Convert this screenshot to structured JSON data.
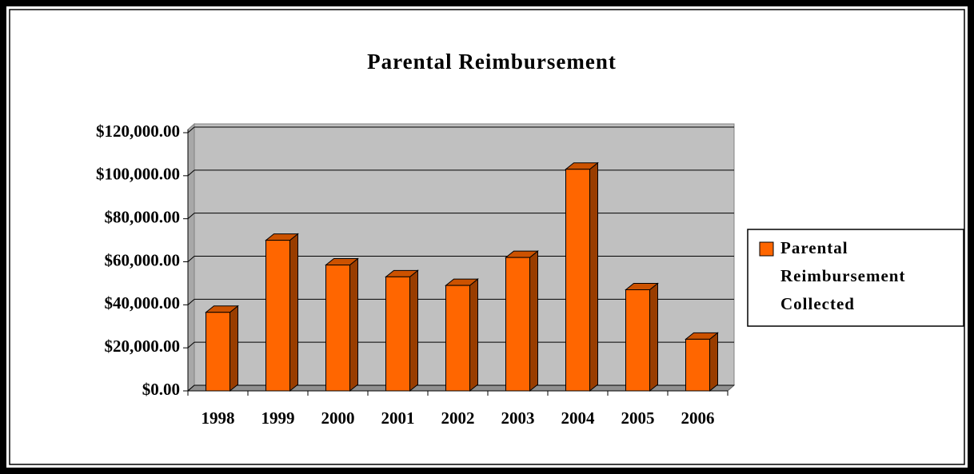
{
  "chart_data": {
    "type": "bar3d",
    "title": "Parental Reimbursement",
    "categories": [
      "1998",
      "1999",
      "2000",
      "2001",
      "2002",
      "2003",
      "2004",
      "2005",
      "2006"
    ],
    "series": [
      {
        "name": "Parental Reimbursement Collected",
        "color": "#ff6600",
        "values": [
          36500,
          70000,
          58500,
          53000,
          49000,
          62000,
          103000,
          47000,
          24000
        ]
      }
    ],
    "ylim": [
      0,
      120000
    ],
    "yticks": [
      {
        "value": 0,
        "label": "$0.00"
      },
      {
        "value": 20000,
        "label": "$20,000.00"
      },
      {
        "value": 40000,
        "label": "$40,000.00"
      },
      {
        "value": 60000,
        "label": "$60,000.00"
      },
      {
        "value": 80000,
        "label": "$80,000.00"
      },
      {
        "value": 100000,
        "label": "$100,000.00"
      },
      {
        "value": 120000,
        "label": "$120,000.00"
      }
    ],
    "grid": true,
    "legend": "right"
  }
}
